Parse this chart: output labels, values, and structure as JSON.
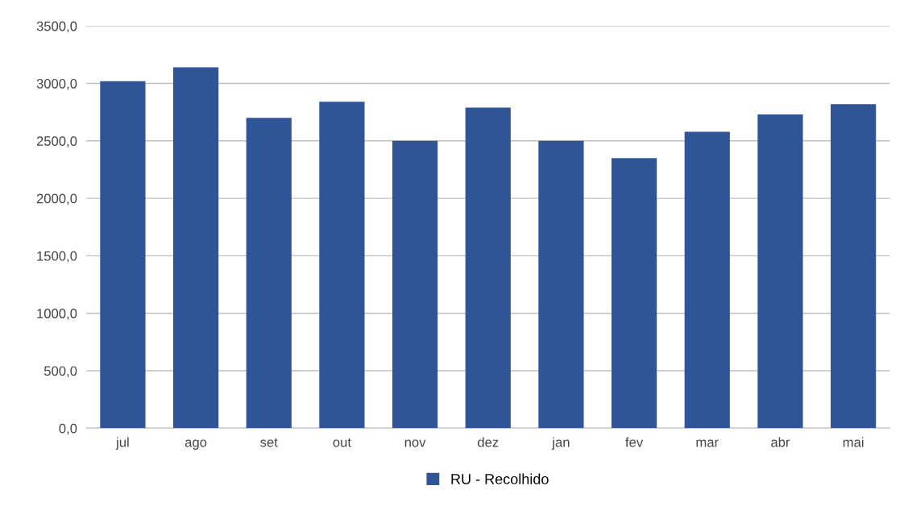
{
  "chart_data": {
    "type": "bar",
    "categories": [
      "jul",
      "ago",
      "set",
      "out",
      "nov",
      "dez",
      "jan",
      "fev",
      "mar",
      "abr",
      "mai"
    ],
    "series": [
      {
        "name": "RU - Recolhido",
        "color": "#2f5597",
        "values": [
          3020,
          3140,
          2700,
          2840,
          2500,
          2790,
          2500,
          2350,
          2580,
          2730,
          2820
        ]
      }
    ],
    "ylim": [
      0,
      3500
    ],
    "yticks": [
      {
        "value": 0,
        "label": "0,0"
      },
      {
        "value": 500,
        "label": "500,0"
      },
      {
        "value": 1000,
        "label": "1000,0"
      },
      {
        "value": 1500,
        "label": "1500,0"
      },
      {
        "value": 2000,
        "label": "2000,0"
      },
      {
        "value": 2500,
        "label": "2500,0"
      },
      {
        "value": 3000,
        "label": "3000,0"
      },
      {
        "value": 3500,
        "label": "3500,0"
      }
    ],
    "grid": "y",
    "legend": "bottom"
  }
}
